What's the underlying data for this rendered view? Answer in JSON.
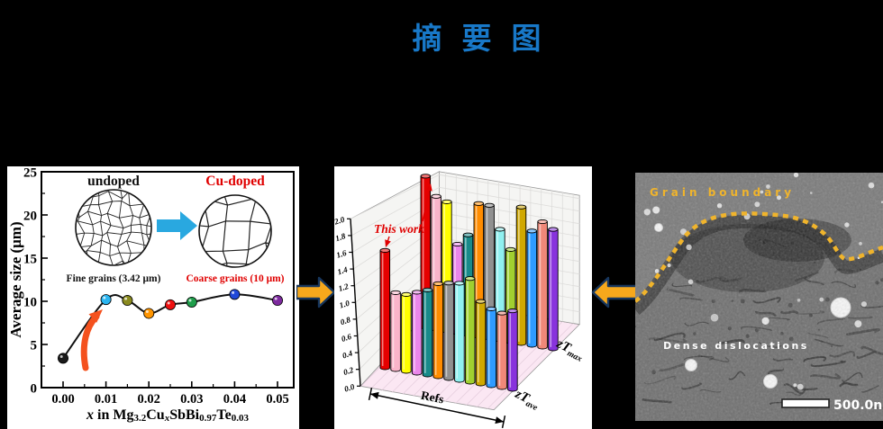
{
  "title": {
    "text": "摘要图",
    "color": "#1878C8"
  },
  "connectors": {
    "fill": "#F6A81C",
    "outline": "#17365D"
  },
  "chart_data": [
    {
      "type": "line",
      "panel": "grain-size",
      "xlabel_plain": "x in Mg3.2CuxSbBi0.97Te0.03",
      "xlabel_segments": [
        [
          "x",
          "bi"
        ],
        [
          " in Mg",
          "b"
        ],
        [
          "3.2",
          "sub"
        ],
        [
          "Cu",
          "b"
        ],
        [
          "x",
          "bisub"
        ],
        [
          "SbBi",
          "b"
        ],
        [
          "0.97",
          "sub"
        ],
        [
          "Te",
          "b"
        ],
        [
          "0.03",
          "sub"
        ]
      ],
      "ylabel": "Average size (μm)",
      "xlim": [
        -0.004,
        0.054
      ],
      "ylim": [
        0,
        25
      ],
      "xticks": [
        0,
        0.01,
        0.02,
        0.03,
        0.04,
        0.05
      ],
      "xtick_labels": [
        "0.00",
        "0.01",
        "0.02",
        "0.03",
        "0.04",
        "0.05"
      ],
      "yticks": [
        0,
        5,
        10,
        15,
        20,
        25
      ],
      "x": [
        0,
        0.01,
        0.015,
        0.02,
        0.025,
        0.03,
        0.04,
        0.05
      ],
      "y": [
        3.4,
        10.2,
        10.1,
        8.6,
        9.6,
        9.9,
        10.8,
        10.1
      ],
      "point_colors": [
        "#1a1a1a",
        "#2bb5f0",
        "#8a8a1f",
        "#ff9500",
        "#ee1111",
        "#1f9e4b",
        "#1f48d8",
        "#7d2a9e"
      ],
      "line_color": "#111111",
      "insets": {
        "undoped": {
          "label": "undoped",
          "label_color": "#111111",
          "caption": "Fine grains  (3.42 μm)",
          "caption_color": "#111111"
        },
        "cu_doped": {
          "label": "Cu-doped",
          "label_color": "#E00000",
          "caption": "Coarse grains  (10 μm)",
          "caption_color": "#E00000"
        },
        "transform_arrow_color": "#29A8E0"
      },
      "trend_arrow_color": "#F4511E"
    },
    {
      "type": "bar",
      "panel": "zt-comparison",
      "style": "3d-cylinder",
      "xlabel": "Refs",
      "series": [
        {
          "name_prefix": "zT",
          "name_sub": "max",
          "values": [
            2.05,
            1.8,
            1.75,
            1.2,
            1.35,
            1.8,
            1.8,
            1.5,
            1.25,
            1.85,
            1.55,
            1.7,
            1.62
          ]
        },
        {
          "name_prefix": "zT",
          "name_sub": "ave",
          "values": [
            1.45,
            0.95,
            0.95,
            1.0,
            1.05,
            1.15,
            1.18,
            1.2,
            1.28,
            1.02,
            0.95,
            0.92,
            0.97
          ]
        }
      ],
      "bar_colors": [
        "#E60000",
        "#F9B4C9",
        "#FFFF00",
        "#EA86EA",
        "#188A8A",
        "#FF8C00",
        "#909090",
        "#90F0F0",
        "#A0D030",
        "#D0A800",
        "#2F9BFF",
        "#F08878",
        "#8833DD"
      ],
      "zlim": [
        0,
        2.0
      ],
      "ztick_labels": [
        "0.0",
        "0.2",
        "0.4",
        "0.6",
        "0.8",
        "1.0",
        "1.2",
        "1.4",
        "1.6",
        "1.8",
        "2.0"
      ],
      "annotation": {
        "text": "This work",
        "color": "#E00000",
        "target_ref_index": 0
      },
      "floor_color": "#FBE7F3",
      "wall_color": "#F5F5F3"
    }
  ],
  "tem": {
    "grain_boundary_label": "Grain boundary",
    "grain_boundary_color": "#F0B42C",
    "dislocations_label": "Dense dislocations",
    "dislocations_color": "#FFFFFF",
    "scale_bar_text": "500.0nm",
    "scale_bar_color": "#FFFFFF"
  }
}
